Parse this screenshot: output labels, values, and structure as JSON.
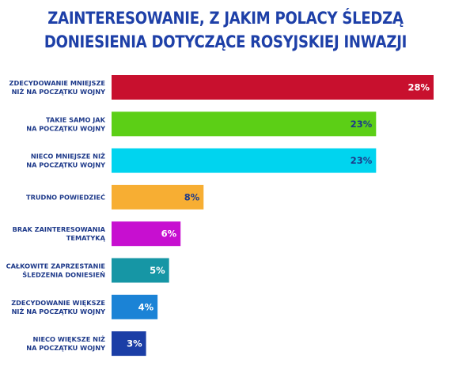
{
  "chart_data": {
    "type": "bar",
    "orientation": "horizontal",
    "title_lines": [
      "ZAINTERESOWANIE, Z JAKIM POLACY ŚLEDZĄ",
      "DONIESIENIA DOTYCZĄCE ROSYJSKIEJ INWAZJI"
    ],
    "categories": [
      [
        "ZDECYDOWANIE MNIEJSZE",
        "NIŻ NA POCZĄTKU WOJNY"
      ],
      [
        "TAKIE SAMO JAK",
        "NA POCZĄTKU WOJNY"
      ],
      [
        "NIECO MNIEJSZE NIŻ",
        "NA POCZĄTKU WOJNY"
      ],
      [
        "TRUDNO POWIEDZIEĆ"
      ],
      [
        "BRAK ZAINTERESOWANIA",
        "TEMATYKĄ"
      ],
      [
        "CAŁKOWITE ZAPRZESTANIE",
        "ŚLEDZENIA DONIESIEŃ"
      ],
      [
        "ZDECYDOWANIE WIĘKSZE",
        "NIŻ NA POCZĄTKU WOJNY"
      ],
      [
        "NIECO WIĘKSZE NIŻ",
        "NA POCZĄTKU WOJNY"
      ]
    ],
    "values": [
      28,
      23,
      23,
      8,
      6,
      5,
      4,
      3
    ],
    "value_labels": [
      "28%",
      "23%",
      "23%",
      "8%",
      "6%",
      "5%",
      "4%",
      "3%"
    ],
    "colors": [
      "#c8102e",
      "#5ccf16",
      "#00d4ef",
      "#f7ae33",
      "#c70fd0",
      "#1696a5",
      "#1b83d6",
      "#1b3ea6"
    ],
    "label_colors": [
      "#ffffff",
      "#1e3a8a",
      "#1e3a8a",
      "#1e3a8a",
      "#ffffff",
      "#ffffff",
      "#ffffff",
      "#ffffff"
    ],
    "xlim": [
      0,
      28
    ]
  }
}
